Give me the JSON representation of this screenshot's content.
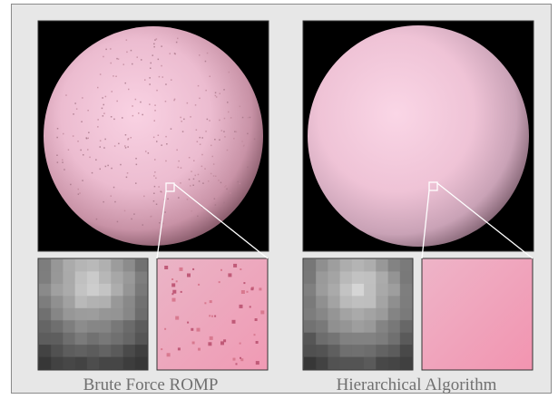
{
  "figure": {
    "panels": [
      {
        "id": "left",
        "caption": "Brute Force ROMP"
      },
      {
        "id": "right",
        "caption": "Hierarchical Algorithm"
      }
    ],
    "colors": {
      "background": "#e7e7e7",
      "sphere_light": "#f7cde0",
      "sphere_dark": "#9c6d7c",
      "inset_pink": "#f0a0b8",
      "zoom_line": "#ffffff"
    }
  }
}
